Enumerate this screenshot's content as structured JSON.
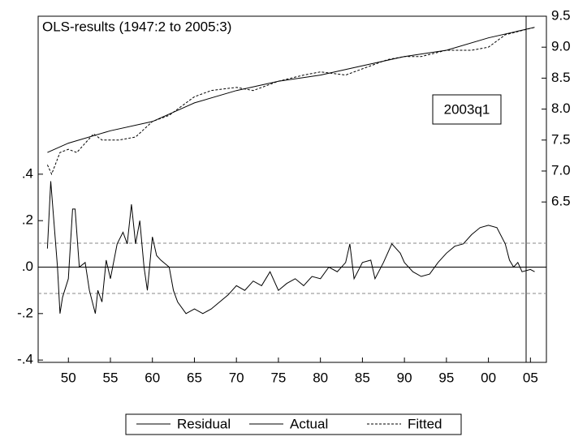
{
  "chart_data": {
    "type": "line",
    "title": "OLS-results (1947:2 to 2005:3)",
    "annotation": "2003q1",
    "xlim": [
      1946.4,
      2006.9
    ],
    "xticks": [
      {
        "value": 1950,
        "label": "50"
      },
      {
        "value": 1955,
        "label": "55"
      },
      {
        "value": 1960,
        "label": "60"
      },
      {
        "value": 1965,
        "label": "65"
      },
      {
        "value": 1970,
        "label": "70"
      },
      {
        "value": 1975,
        "label": "75"
      },
      {
        "value": 1980,
        "label": "80"
      },
      {
        "value": 1985,
        "label": "85"
      },
      {
        "value": 1990,
        "label": "90"
      },
      {
        "value": 1995,
        "label": "95"
      },
      {
        "value": 2000,
        "label": "00"
      },
      {
        "value": 2005,
        "label": "05"
      }
    ],
    "ylim": [
      -0.41,
      1.08
    ],
    "yticks": [
      {
        "value": 0.4,
        "label": ".4"
      },
      {
        "value": 0.2,
        "label": ".2"
      },
      {
        "value": 0,
        "label": ".0"
      },
      {
        "value": -0.2,
        "label": "-.2"
      },
      {
        "value": -0.4,
        "label": "-.4"
      }
    ],
    "y2lim": [
      3.91,
      9.5
    ],
    "y2ticks": [
      6.5,
      {
        "value": 7,
        "label": "7.0"
      },
      7.5,
      {
        "value": 8,
        "label": "8.0"
      },
      8.5,
      {
        "value": 9,
        "label": "9.0"
      },
      9.5
    ],
    "series": [
      {
        "name": "Residual",
        "color": "#000000",
        "dash": false,
        "x": [
          1947.5,
          1947.9,
          1948.7,
          1949.0,
          1949.3,
          1950.0,
          1950.5,
          1950.8,
          1951.3,
          1952.0,
          1952.5,
          1953.2,
          1953.5,
          1954.0,
          1954.5,
          1955.0,
          1955.8,
          1956.5,
          1957.0,
          1957.5,
          1958.0,
          1958.5,
          1959.0,
          1959.4,
          1960.0,
          1960.5,
          1961.0,
          1962.0,
          1962.5,
          1963.0,
          1964.0,
          1965.0,
          1966.0,
          1967.0,
          1968.0,
          1969.0,
          1970.0,
          1971.0,
          1972.0,
          1973.0,
          1974.0,
          1975.0,
          1976.0,
          1977.0,
          1978.0,
          1979.0,
          1980.0,
          1981.0,
          1982.0,
          1983.0,
          1983.5,
          1984.0,
          1985.0,
          1986.0,
          1986.5,
          1987.5,
          1988.5,
          1989.5,
          1990.0,
          1991.0,
          1992.0,
          1993.0,
          1994.0,
          1995.0,
          1996.0,
          1997.0,
          1998.0,
          1999.0,
          2000.0,
          2001.0,
          2002.0,
          2002.5,
          2003.0,
          2003.5,
          2004.0,
          2005.0,
          2005.5
        ],
        "values": [
          0.08,
          0.37,
          0,
          -0.2,
          -0.13,
          -0.05,
          0.25,
          0.25,
          0,
          0.02,
          -0.1,
          -0.2,
          -0.1,
          -0.15,
          0.03,
          -0.05,
          0.1,
          0.15,
          0.1,
          0.27,
          0.1,
          0.2,
          0,
          -0.1,
          0.13,
          0.05,
          0.03,
          0,
          -0.1,
          -0.15,
          -0.2,
          -0.18,
          -0.2,
          -0.18,
          -0.15,
          -0.12,
          -0.08,
          -0.1,
          -0.06,
          -0.08,
          -0.02,
          -0.1,
          -0.07,
          -0.05,
          -0.08,
          -0.04,
          -0.05,
          0,
          -0.02,
          0.02,
          0.1,
          -0.05,
          0.02,
          0.03,
          -0.05,
          0.02,
          0.1,
          0.06,
          0.02,
          -0.02,
          -0.04,
          -0.03,
          0.02,
          0.06,
          0.09,
          0.1,
          0.14,
          0.17,
          0.18,
          0.17,
          0.1,
          0.03,
          0,
          0.02,
          -0.02,
          -0.01,
          -0.02
        ]
      },
      {
        "name": "Actual",
        "color": "#000000",
        "dash": false,
        "axis": "y2",
        "x": [
          1947.5,
          1950,
          1955,
          1960,
          1965,
          1970,
          1975,
          1980,
          1985,
          1990,
          1995,
          2000,
          2005.5
        ],
        "values": [
          7.3,
          7.45,
          7.65,
          7.8,
          8.1,
          8.3,
          8.45,
          8.55,
          8.7,
          8.85,
          8.95,
          9.15,
          9.32
        ]
      },
      {
        "name": "Fitted",
        "color": "#000000",
        "dash": true,
        "axis": "y2",
        "x": [
          1947.5,
          1948,
          1949,
          1950,
          1951,
          1953,
          1954,
          1956,
          1958,
          1960,
          1962,
          1965,
          1967,
          1970,
          1972,
          1975,
          1978,
          1980,
          1983,
          1985,
          1988,
          1990,
          1992,
          1995,
          1998,
          2000,
          2002,
          2005.5
        ],
        "values": [
          7.1,
          6.95,
          7.3,
          7.35,
          7.3,
          7.6,
          7.5,
          7.5,
          7.55,
          7.8,
          7.9,
          8.2,
          8.3,
          8.35,
          8.3,
          8.45,
          8.55,
          8.6,
          8.55,
          8.65,
          8.8,
          8.85,
          8.85,
          8.95,
          8.95,
          9.0,
          9.2,
          9.32
        ]
      }
    ]
  }
}
